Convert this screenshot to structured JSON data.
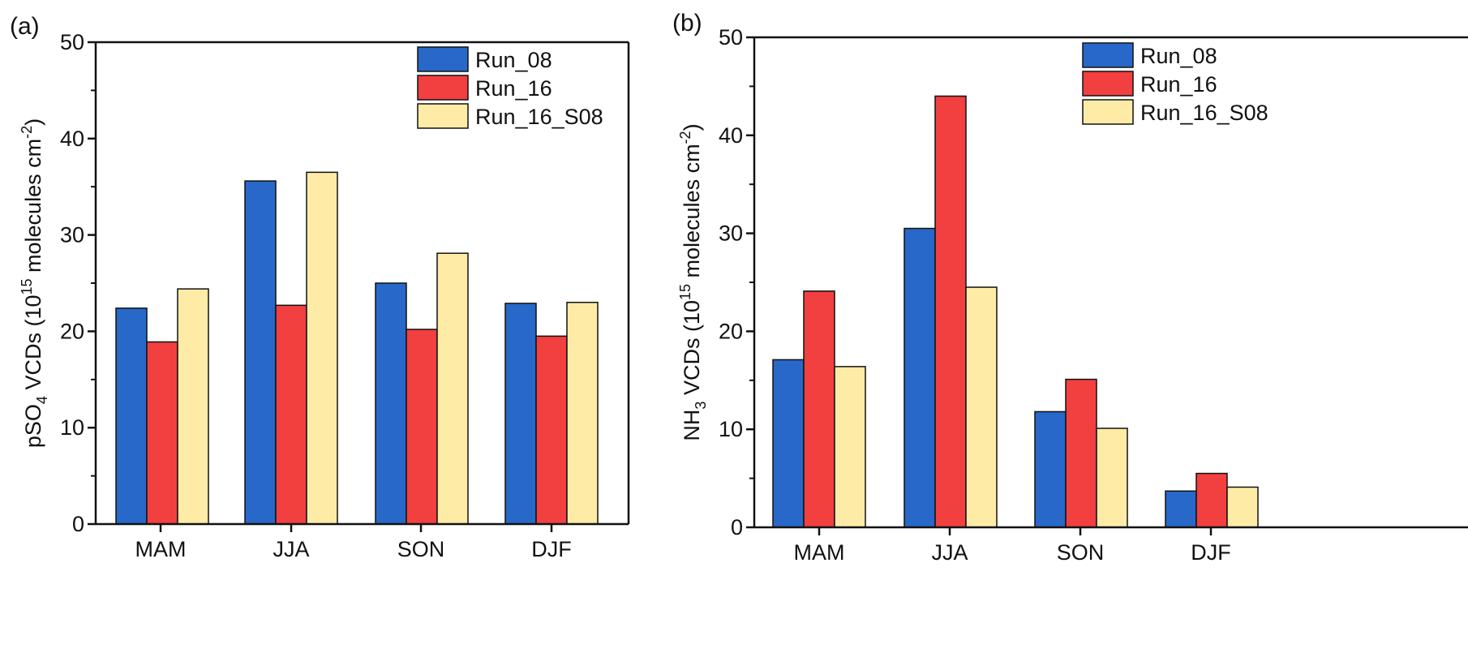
{
  "chart_data": [
    {
      "type": "bar",
      "panel_label": "(a)",
      "categories": [
        "MAM",
        "JJA",
        "SON",
        "DJF"
      ],
      "series": [
        {
          "name": "Run_08",
          "color": "#2868c8",
          "values": [
            22.4,
            35.6,
            25.0,
            22.9
          ]
        },
        {
          "name": "Run_16",
          "color": "#f23f3f",
          "values": [
            18.9,
            22.7,
            20.2,
            19.5
          ]
        },
        {
          "name": "Run_16_S08",
          "color": "#feeca6",
          "values": [
            24.4,
            36.5,
            28.1,
            23.0
          ]
        }
      ],
      "ylabel_parts": {
        "pre": "pSO",
        "sub": "4",
        "mid": " VCDs (10",
        "sup1": "15",
        "post": " molecules cm",
        "sup2": "-2",
        "end": ")"
      },
      "ylim": [
        0,
        50
      ],
      "yticks": [
        "0",
        "10",
        "20",
        "30",
        "40",
        "50"
      ],
      "legend_position": "top-right",
      "grid": false
    },
    {
      "type": "bar",
      "panel_label": "(b)",
      "categories": [
        "MAM",
        "JJA",
        "SON",
        "DJF"
      ],
      "series": [
        {
          "name": "Run_08",
          "color": "#2868c8",
          "values": [
            17.1,
            30.5,
            11.8,
            3.7
          ]
        },
        {
          "name": "Run_16",
          "color": "#f23f3f",
          "values": [
            24.1,
            44.0,
            15.1,
            5.5
          ]
        },
        {
          "name": "Run_16_S08",
          "color": "#feeca6",
          "values": [
            16.4,
            24.5,
            10.1,
            4.1
          ]
        }
      ],
      "ylabel_parts": {
        "pre": "NH",
        "sub": "3",
        "mid": " VCDs (10",
        "sup1": "15",
        "post": " molecules cm",
        "sup2": "-2",
        "end": ")"
      },
      "ylim": [
        0,
        50
      ],
      "yticks": [
        "0",
        "10",
        "20",
        "30",
        "40",
        "50"
      ],
      "legend_position": "top-right",
      "grid": false
    }
  ]
}
